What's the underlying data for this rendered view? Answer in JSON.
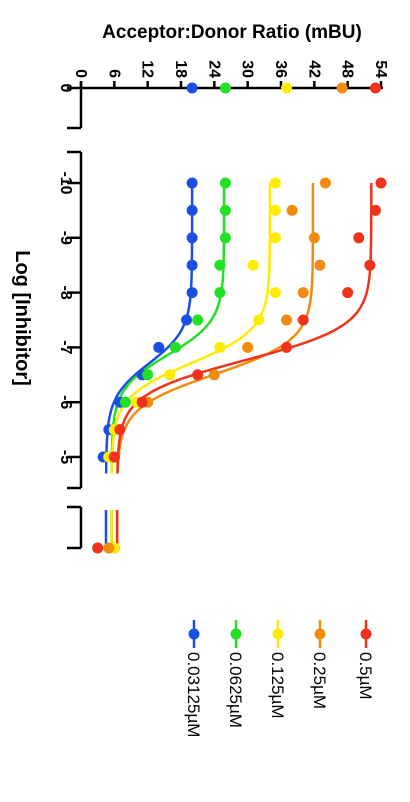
{
  "chart_data": {
    "type": "scatter",
    "orientation": "rotated 90 degrees clockwise",
    "title": "Acceptor:Donor Ratio (mBU)",
    "ylabel": "Acceptor:Donor Ratio (mBU)",
    "xlabel": "Log [Inhibitor]",
    "y_ticks": [
      "0",
      "6",
      "12",
      "18",
      "24",
      "30",
      "36",
      "42",
      "48",
      "54"
    ],
    "y_tick_values": [
      0,
      6,
      12,
      18,
      24,
      30,
      36,
      42,
      48,
      54
    ],
    "ylim": [
      0,
      54
    ],
    "x_segments": [
      {
        "ticks": [
          "0"
        ],
        "tick_values": [
          0
        ]
      },
      {
        "ticks": [
          "-10",
          "-9",
          "-8",
          "-7",
          "-6",
          "-5"
        ],
        "tick_values": [
          -10,
          -9,
          -8,
          -7,
          -6,
          -5
        ],
        "xlim": [
          -10.4,
          -4.6
        ]
      },
      {
        "ticks": [],
        "tick_values": [],
        "note": "high-concentration segment"
      }
    ],
    "grid": false,
    "legend_position": "bottom",
    "series": [
      {
        "name": "0.03125µM",
        "color": "#1a4fe6",
        "zero_value": 20,
        "points": [
          [
            -10,
            20
          ],
          [
            -9.5,
            20
          ],
          [
            -9,
            20
          ],
          [
            -8.5,
            20
          ],
          [
            -8,
            20
          ],
          [
            -7.5,
            19
          ],
          [
            -7,
            14
          ],
          [
            -6.5,
            11
          ],
          [
            -6,
            7
          ],
          [
            -5.5,
            5
          ],
          [
            -5,
            4
          ]
        ],
        "high_value": 6
      },
      {
        "name": "0.0625µM",
        "color": "#22e022",
        "zero_value": 26,
        "points": [
          [
            -10,
            26
          ],
          [
            -9.5,
            26
          ],
          [
            -9,
            26
          ],
          [
            -8.5,
            25
          ],
          [
            -8,
            25
          ],
          [
            -7.5,
            21
          ],
          [
            -7,
            17
          ],
          [
            -6.5,
            12
          ],
          [
            -6,
            8
          ],
          [
            -5.5,
            6
          ],
          [
            -5,
            5
          ]
        ],
        "high_value": 6
      },
      {
        "name": "0.125µM",
        "color": "#ffec00",
        "zero_value": 37,
        "points": [
          [
            -10,
            35
          ],
          [
            -9.5,
            35
          ],
          [
            -9,
            35
          ],
          [
            -8.5,
            31
          ],
          [
            -8,
            35
          ],
          [
            -7.5,
            32
          ],
          [
            -7,
            25
          ],
          [
            -6.5,
            16
          ],
          [
            -6,
            10
          ],
          [
            -5.5,
            6
          ],
          [
            -5,
            5
          ]
        ],
        "high_value": 6
      },
      {
        "name": "0.25µM",
        "color": "#f28c0f",
        "zero_value": 47,
        "points": [
          [
            -10,
            44
          ],
          [
            -9.5,
            38
          ],
          [
            -9,
            42
          ],
          [
            -8.5,
            43
          ],
          [
            -8,
            40
          ],
          [
            -7.5,
            37
          ],
          [
            -7,
            30
          ],
          [
            -6.5,
            24
          ],
          [
            -6,
            12
          ],
          [
            -5.5,
            7
          ],
          [
            -5,
            6
          ]
        ],
        "high_value": 5
      },
      {
        "name": "0.5µM",
        "color": "#f0321a",
        "zero_value": 53,
        "points": [
          [
            -10,
            54
          ],
          [
            -9.5,
            53
          ],
          [
            -9,
            50
          ],
          [
            -8.5,
            52
          ],
          [
            -8,
            48
          ],
          [
            -7.5,
            40
          ],
          [
            -7,
            37
          ],
          [
            -6.5,
            21
          ],
          [
            -6,
            11
          ],
          [
            -5.5,
            7
          ],
          [
            -5,
            6
          ]
        ],
        "high_value": 3
      }
    ]
  }
}
